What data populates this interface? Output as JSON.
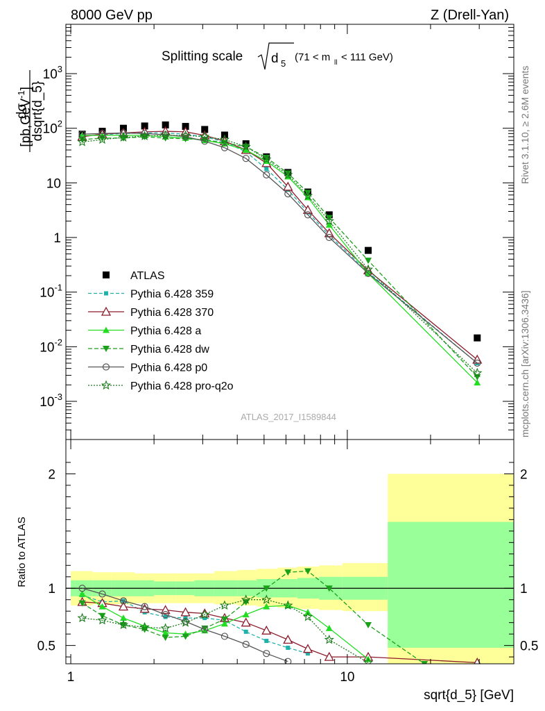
{
  "header": {
    "left": "8000 GeV pp",
    "right": "Z (Drell-Yan)"
  },
  "side": {
    "rivet": "Rivet 3.1.10, ≥ 2.6M events",
    "mcplots": "mcplots.cern.ch [arXiv:1306.3436]"
  },
  "analysis_label": "ATLAS_2017_I1589844",
  "chart_data": [
    {
      "type": "line",
      "title_main": "Splitting scale",
      "title_sqrt": "d",
      "title_sqrt_sub": "5",
      "title_range_pre": "(71 < m",
      "title_range_sub": "ll",
      "title_range_post": " < 111 GeV)",
      "ylabel_num": "dσ",
      "ylabel_den": "dsqrt{d_5}",
      "ylabel_unit": "[pb,GeV",
      "ylabel_unit_sup": "-1",
      "ylabel_unit_end": "]",
      "xscale": "log",
      "yscale": "log",
      "xlim": [
        0.96,
        40
      ],
      "ylim": [
        0.0002,
        8000
      ],
      "yticks": [
        {
          "v": 0.001,
          "base": "10",
          "exp": "-3"
        },
        {
          "v": 0.01,
          "base": "10",
          "exp": "-2"
        },
        {
          "v": 0.1,
          "base": "10",
          "exp": "-1"
        },
        {
          "v": 1,
          "base": "1",
          "exp": ""
        },
        {
          "v": 10,
          "base": "10",
          "exp": ""
        },
        {
          "v": 100,
          "base": "10",
          "exp": "2"
        },
        {
          "v": 1000,
          "base": "10",
          "exp": "3"
        }
      ],
      "x": [
        1.1,
        1.3,
        1.55,
        1.85,
        2.2,
        2.6,
        3.05,
        3.6,
        4.3,
        5.1,
        6.1,
        7.2,
        8.6,
        11.9,
        29.5
      ],
      "series": [
        {
          "name": "ATLAS",
          "color": "#000000",
          "dash": "",
          "marker": "square",
          "values": [
            78,
            88,
            100,
            110,
            115,
            108,
            95,
            75,
            52,
            30,
            15.5,
            6.8,
            2.6,
            0.58,
            0.0145
          ]
        },
        {
          "name": "Pythia 6.428 359",
          "color": "#20b2aa",
          "dash": "5,3",
          "marker": "smallsquare",
          "values": [
            72,
            76,
            80,
            82,
            82,
            78,
            70,
            56,
            37,
            18,
            7.5,
            2.9,
            1.1,
            0.23,
            0.005
          ]
        },
        {
          "name": "Pythia 6.428 370",
          "color": "#8b1a2a",
          "dash": "",
          "marker": "triangle-open",
          "values": [
            70,
            78,
            82,
            86,
            88,
            86,
            74,
            58,
            40,
            23,
            8.5,
            3.2,
            1.2,
            0.25,
            0.0058
          ]
        },
        {
          "name": "Pythia 6.428 a",
          "color": "#22dd22",
          "dash": "",
          "marker": "triangle",
          "values": [
            74,
            74,
            74,
            74,
            70,
            66,
            60,
            52,
            40,
            25,
            13,
            5.4,
            1.7,
            0.22,
            0.0022
          ]
        },
        {
          "name": "Pythia 6.428 dw",
          "color": "#1aa01a",
          "dash": "6,3",
          "marker": "triangle-down",
          "values": [
            62,
            66,
            66,
            70,
            66,
            64,
            62,
            54,
            46,
            29,
            15,
            6.6,
            2.3,
            0.38,
            0.0028
          ]
        },
        {
          "name": "Pythia 6.428 p0",
          "color": "#555555",
          "dash": "",
          "marker": "circle-open",
          "values": [
            78,
            80,
            82,
            80,
            76,
            70,
            58,
            44,
            28,
            14,
            6.3,
            2.6,
            1.0,
            0.22,
            0.005
          ]
        },
        {
          "name": "Pythia 6.428 pro-q2o",
          "color": "#1a7a1a",
          "dash": "2,2",
          "marker": "star-open",
          "values": [
            56,
            62,
            68,
            72,
            74,
            74,
            70,
            62,
            46,
            27,
            14,
            5.8,
            2.0,
            0.26,
            0.0033
          ]
        }
      ]
    },
    {
      "type": "line",
      "ylabel": "Ratio to ATLAS",
      "xlabel": "sqrt{d_5} [GeV]",
      "xscale": "log",
      "xlim": [
        0.96,
        40
      ],
      "ylim": [
        0.34,
        2.3
      ],
      "yticks": [
        0.5,
        1,
        2
      ],
      "xticks": [
        {
          "v": 1,
          "label": "1"
        },
        {
          "v": 10,
          "label": "10"
        }
      ],
      "bands": [
        {
          "x0": 1.0,
          "x1": 1.2,
          "y_lo": 0.85,
          "y_hi": 1.15,
          "stat_lo": 0.93,
          "stat_hi": 1.07
        },
        {
          "x0": 1.2,
          "x1": 1.4,
          "y_lo": 0.86,
          "y_hi": 1.14,
          "stat_lo": 0.93,
          "stat_hi": 1.07
        },
        {
          "x0": 1.4,
          "x1": 1.7,
          "y_lo": 0.86,
          "y_hi": 1.14,
          "stat_lo": 0.93,
          "stat_hi": 1.07
        },
        {
          "x0": 1.7,
          "x1": 2.0,
          "y_lo": 0.87,
          "y_hi": 1.13,
          "stat_lo": 0.93,
          "stat_hi": 1.07
        },
        {
          "x0": 2.0,
          "x1": 2.4,
          "y_lo": 0.87,
          "y_hi": 1.13,
          "stat_lo": 0.94,
          "stat_hi": 1.06
        },
        {
          "x0": 2.4,
          "x1": 2.8,
          "y_lo": 0.87,
          "y_hi": 1.13,
          "stat_lo": 0.94,
          "stat_hi": 1.06
        },
        {
          "x0": 2.8,
          "x1": 3.3,
          "y_lo": 0.87,
          "y_hi": 1.13,
          "stat_lo": 0.93,
          "stat_hi": 1.07
        },
        {
          "x0": 3.3,
          "x1": 4.0,
          "y_lo": 0.86,
          "y_hi": 1.15,
          "stat_lo": 0.93,
          "stat_hi": 1.07
        },
        {
          "x0": 4.0,
          "x1": 4.7,
          "y_lo": 0.85,
          "y_hi": 1.16,
          "stat_lo": 0.93,
          "stat_hi": 1.07
        },
        {
          "x0": 4.7,
          "x1": 5.6,
          "y_lo": 0.84,
          "y_hi": 1.17,
          "stat_lo": 0.92,
          "stat_hi": 1.08
        },
        {
          "x0": 5.6,
          "x1": 6.6,
          "y_lo": 0.83,
          "y_hi": 1.18,
          "stat_lo": 0.92,
          "stat_hi": 1.08
        },
        {
          "x0": 6.6,
          "x1": 7.9,
          "y_lo": 0.82,
          "y_hi": 1.19,
          "stat_lo": 0.91,
          "stat_hi": 1.09
        },
        {
          "x0": 7.9,
          "x1": 9.6,
          "y_lo": 0.81,
          "y_hi": 1.2,
          "stat_lo": 0.9,
          "stat_hi": 1.1
        },
        {
          "x0": 9.6,
          "x1": 14.0,
          "y_lo": 0.8,
          "y_hi": 1.22,
          "stat_lo": 0.9,
          "stat_hi": 1.1
        },
        {
          "x0": 14.0,
          "x1": 40,
          "y_lo": 0.0,
          "y_hi": 2.0,
          "stat_lo": 0.48,
          "stat_hi": 1.58
        }
      ],
      "band_colors": {
        "total": "#ffff99",
        "stat": "#99ff99"
      },
      "series": [
        {
          "name": "Pythia 6.428 359",
          "color": "#20b2aa",
          "dash": "5,3",
          "marker": "smallsquare",
          "x": [
            1.1,
            1.3,
            1.55,
            1.85,
            2.2,
            2.6,
            3.05,
            3.6,
            4.3,
            5.1,
            6.1,
            7.2
          ],
          "values": [
            0.94,
            0.88,
            0.89,
            0.79,
            0.75,
            0.74,
            0.74,
            0.72,
            0.62,
            0.54,
            0.48,
            0.43
          ]
        },
        {
          "name": "Pythia 6.428 370",
          "color": "#8b1a2a",
          "dash": "",
          "marker": "triangle-open",
          "x": [
            1.1,
            1.3,
            1.55,
            1.85,
            2.2,
            2.6,
            3.05,
            3.6,
            4.3,
            5.1,
            6.1,
            7.2,
            8.6,
            11.9,
            29.5
          ],
          "values": [
            0.88,
            0.87,
            0.84,
            0.82,
            0.81,
            0.79,
            0.78,
            0.74,
            0.7,
            0.63,
            0.55,
            0.47,
            0.4,
            0.4,
            0.35
          ]
        },
        {
          "name": "Pythia 6.428 a",
          "color": "#22dd22",
          "dash": "",
          "marker": "triangle",
          "x": [
            1.1,
            1.3,
            1.55,
            1.85,
            2.2,
            2.6,
            3.05,
            3.6,
            4.3,
            5.1,
            6.1,
            7.2,
            8.6,
            11.9
          ],
          "values": [
            0.95,
            0.84,
            0.74,
            0.67,
            0.61,
            0.6,
            0.63,
            0.69,
            0.77,
            0.84,
            0.85,
            0.79,
            0.65,
            0.38
          ]
        },
        {
          "name": "Pythia 6.428 dw",
          "color": "#1aa01a",
          "dash": "6,3",
          "marker": "triangle-down",
          "x": [
            1.1,
            1.3,
            1.55,
            1.85,
            2.2,
            2.6,
            3.05,
            3.6,
            4.3,
            5.1,
            6.1,
            7.2,
            8.6,
            11.9,
            19
          ],
          "values": [
            0.87,
            0.76,
            0.68,
            0.64,
            0.57,
            0.58,
            0.65,
            0.73,
            0.88,
            1.0,
            1.14,
            1.15,
            1.0,
            0.68,
            0.34
          ]
        },
        {
          "name": "Pythia 6.428 p0",
          "color": "#555555",
          "dash": "",
          "marker": "circle-open",
          "x": [
            1.1,
            1.3,
            1.55,
            1.85,
            2.2,
            2.6,
            3.05,
            3.6,
            4.3,
            5.1,
            6.1
          ],
          "values": [
            1.0,
            0.95,
            0.89,
            0.84,
            0.77,
            0.71,
            0.64,
            0.58,
            0.51,
            0.43,
            0.36
          ]
        },
        {
          "name": "Pythia 6.428 pro-q2o",
          "color": "#1a7a1a",
          "dash": "2,2",
          "marker": "star-open",
          "x": [
            1.1,
            1.3,
            1.55,
            1.85,
            2.2,
            2.6,
            3.05,
            3.6,
            4.3,
            5.1,
            6.1,
            7.2,
            8.6,
            11.9
          ],
          "values": [
            0.74,
            0.72,
            0.68,
            0.66,
            0.65,
            0.7,
            0.77,
            0.85,
            0.9,
            0.9,
            0.85,
            0.75,
            0.55,
            0.35
          ]
        }
      ]
    }
  ]
}
